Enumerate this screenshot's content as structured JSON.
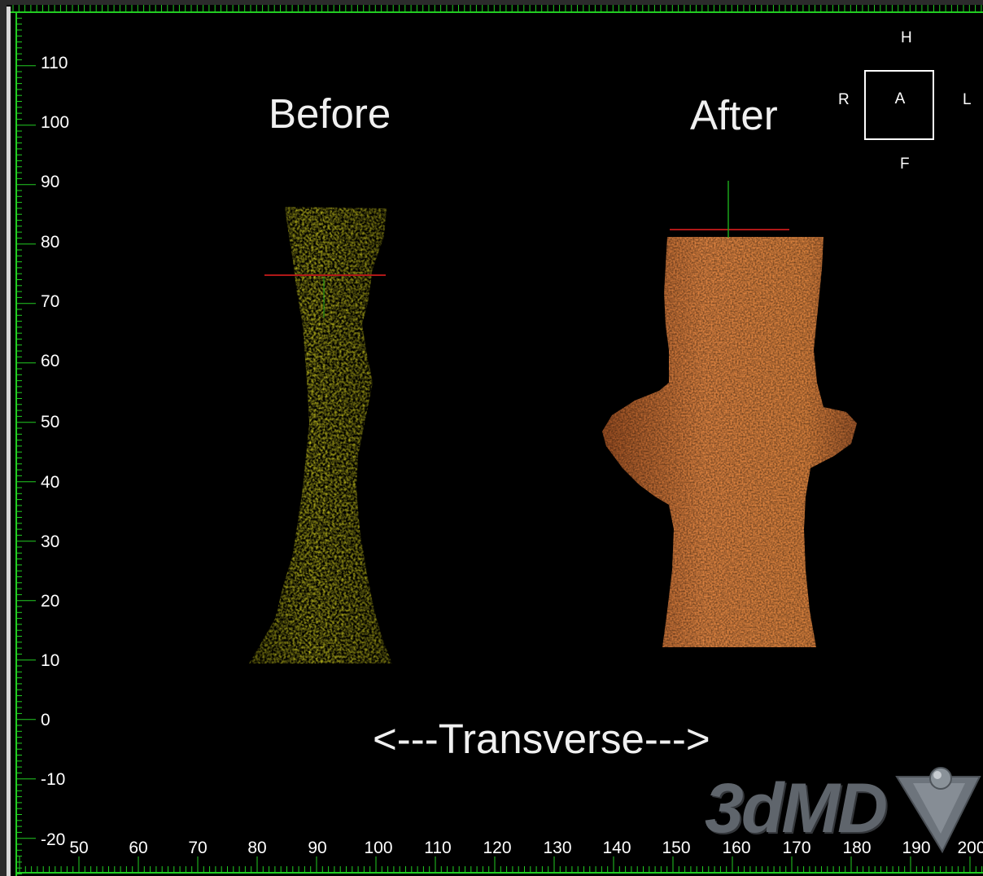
{
  "view": {
    "before_label": "Before",
    "after_label": "After",
    "direction_label": "<---Transverse--->"
  },
  "axes": {
    "y_ticks": [
      "110",
      "100",
      "90",
      "80",
      "70",
      "60",
      "50",
      "40",
      "30",
      "20",
      "10",
      "0",
      "-10",
      "-20"
    ],
    "x_ticks": [
      "50",
      "60",
      "70",
      "80",
      "90",
      "100",
      "110",
      "120",
      "130",
      "140",
      "150",
      "160",
      "170",
      "180",
      "190",
      "200"
    ]
  },
  "orientation": {
    "top": "H",
    "bottom": "F",
    "left": "R",
    "right": "L",
    "center": "A"
  },
  "watermark": {
    "text": "3dMD"
  },
  "colors": {
    "ruler": "#22cc22",
    "before_shape": "#c8c418",
    "after_shape": "#d27a3a",
    "crosshair_h": "#b01818",
    "crosshair_v": "#1aa31a",
    "watermark": "#6a7078"
  },
  "icons": {
    "logo": "3dmd-logo-icon"
  }
}
